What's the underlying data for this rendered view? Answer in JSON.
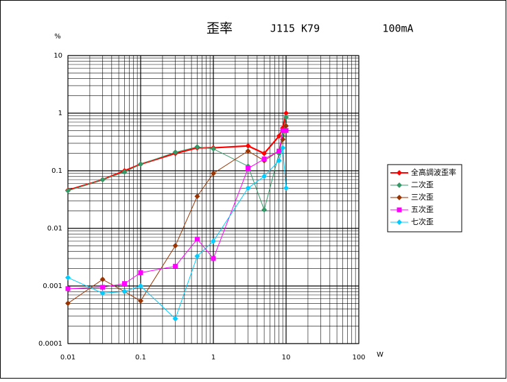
{
  "chart_data": {
    "type": "line",
    "title": "歪率",
    "annotations": [
      "J115 K79",
      "100mA"
    ],
    "x_label": "W",
    "y_label": "%",
    "log_x": true,
    "log_y": true,
    "grid": true,
    "minor_grid": true,
    "legend": "right",
    "x": [
      0.01,
      0.03,
      0.06,
      0.1,
      0.3,
      0.6,
      1,
      3,
      5,
      8,
      9,
      10
    ],
    "series": [
      {
        "name": "全高調波歪率",
        "color": "#ff0000",
        "marker": "diamond",
        "values": [
          0.046,
          0.07,
          0.1,
          0.13,
          0.2,
          0.25,
          0.25,
          0.27,
          0.2,
          0.4,
          0.55,
          1.0
        ]
      },
      {
        "name": "二次歪",
        "color": "#339966",
        "marker": "diamond",
        "values": [
          0.045,
          0.07,
          0.095,
          0.13,
          0.21,
          0.26,
          0.24,
          0.12,
          0.021,
          0.2,
          0.4,
          0.85
        ]
      },
      {
        "name": "三次歪",
        "color": "#993300",
        "marker": "diamond",
        "values": [
          0.0005,
          0.0013,
          0.0008,
          0.00055,
          0.005,
          0.036,
          0.09,
          0.22,
          0.15,
          0.22,
          0.35,
          0.6
        ]
      },
      {
        "name": "五次歪",
        "color": "#ff00ff",
        "marker": "square",
        "values": [
          0.0009,
          0.00095,
          0.0011,
          0.0017,
          0.0022,
          0.0065,
          0.003,
          0.11,
          0.16,
          0.22,
          0.5,
          0.5
        ]
      },
      {
        "name": "七次歪",
        "color": "#00ccff",
        "marker": "diamond",
        "values": [
          0.0014,
          0.00075,
          0.0008,
          0.001,
          0.00027,
          0.0033,
          0.006,
          0.05,
          0.08,
          0.15,
          0.25,
          0.05
        ]
      }
    ],
    "xlim": [
      0.01,
      100
    ],
    "xticks": [
      0.01,
      0.1,
      1,
      10,
      100
    ],
    "ylim": [
      0.0001,
      10
    ],
    "yticks": [
      0.0001,
      0.001,
      0.01,
      0.1,
      1,
      10
    ]
  }
}
